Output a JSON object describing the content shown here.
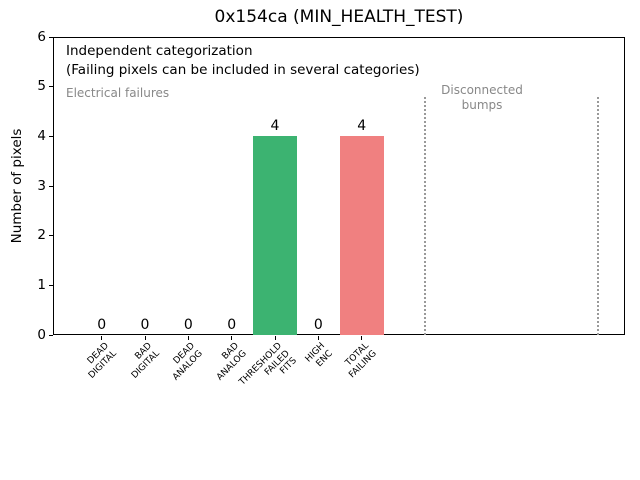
{
  "chart_data": {
    "type": "bar",
    "title": "0x154ca (MIN_HEALTH_TEST)",
    "ylabel": "Number of pixels",
    "xlabel": "",
    "ylim": [
      0,
      6
    ],
    "yticks": [
      0,
      1,
      2,
      3,
      4,
      5,
      6
    ],
    "grid": false,
    "legend": false,
    "categories": [
      "DEAD DIGITAL",
      "BAD DIGITAL",
      "DEAD ANALOG",
      "BAD ANALOG",
      "THRESHOLD FAILED FITS",
      "HIGH ENC",
      "TOTAL FAILING"
    ],
    "category_label_lines": [
      [
        "DEAD",
        "DIGITAL"
      ],
      [
        "BAD",
        "DIGITAL"
      ],
      [
        "DEAD",
        "ANALOG"
      ],
      [
        "BAD",
        "ANALOG"
      ],
      [
        "THRESHOLD",
        "FAILED",
        "FITS"
      ],
      [
        "HIGH",
        "ENC"
      ],
      [
        "TOTAL",
        "FAILING"
      ]
    ],
    "values": [
      0,
      0,
      0,
      0,
      4,
      0,
      4
    ],
    "bar_colors": [
      null,
      null,
      null,
      null,
      "#3cb371",
      null,
      "#f08080"
    ],
    "value_labels": [
      "0",
      "0",
      "0",
      "0",
      "4",
      "0",
      "4"
    ],
    "annotations": {
      "note_line1": "Independent categorization",
      "note_line2": "(Failing pixels can be included in several categories)",
      "group_left_label": "Electrical failures",
      "group_right_label": "Disconnected bumps",
      "group_right_label_lines": [
        "Disconnected",
        "bumps"
      ]
    },
    "separators": {
      "style": "dotted",
      "color": "#999999",
      "count": 2,
      "span_data_y": [
        0,
        4.8
      ]
    }
  },
  "colors": {
    "background": "#ffffff",
    "axis": "#000000",
    "bar_green": "#3cb371",
    "bar_red": "#f08080",
    "annotation_gray": "#888888",
    "separator_gray": "#999999"
  }
}
